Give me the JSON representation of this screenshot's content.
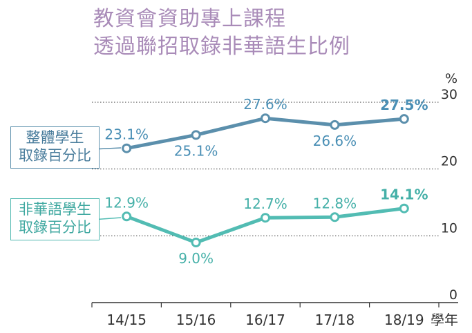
{
  "title": {
    "line1": "教資會資助專上課程",
    "line2": "透過聯招取錄非華語生比例"
  },
  "colors": {
    "title": "#a98bb8",
    "overall": "#5b8fac",
    "overall_label": "#4a8fb5",
    "nonchinese": "#52bcb3",
    "nonchinese_label": "#45b0a8",
    "axis_text": "#333333",
    "grid": "#333333"
  },
  "chart_data": {
    "type": "line",
    "categories": [
      "14/15",
      "15/16",
      "16/17",
      "17/18",
      "18/19"
    ],
    "xlabel": "學年",
    "ylabel": "%",
    "ylim": [
      0,
      30
    ],
    "yticks": [
      0,
      10,
      20,
      30
    ],
    "grid": true,
    "series": [
      {
        "key": "overall",
        "name_lines": [
          "整體學生",
          "取錄百分比"
        ],
        "values": [
          23.1,
          25.1,
          27.6,
          26.6,
          27.5
        ],
        "labels": [
          "23.1%",
          "25.1%",
          "27.6%",
          "26.6%",
          "27.5%"
        ],
        "label_pos": [
          "above",
          "below",
          "above",
          "below",
          "above"
        ],
        "bold_last": true
      },
      {
        "key": "nonchinese",
        "name_lines": [
          "非華語學生",
          "取錄百分比"
        ],
        "values": [
          12.9,
          9.0,
          12.7,
          12.8,
          14.1
        ],
        "labels": [
          "12.9%",
          "9.0%",
          "12.7%",
          "12.8%",
          "14.1%"
        ],
        "label_pos": [
          "above",
          "below",
          "above",
          "above",
          "above"
        ],
        "bold_last": true
      }
    ]
  }
}
